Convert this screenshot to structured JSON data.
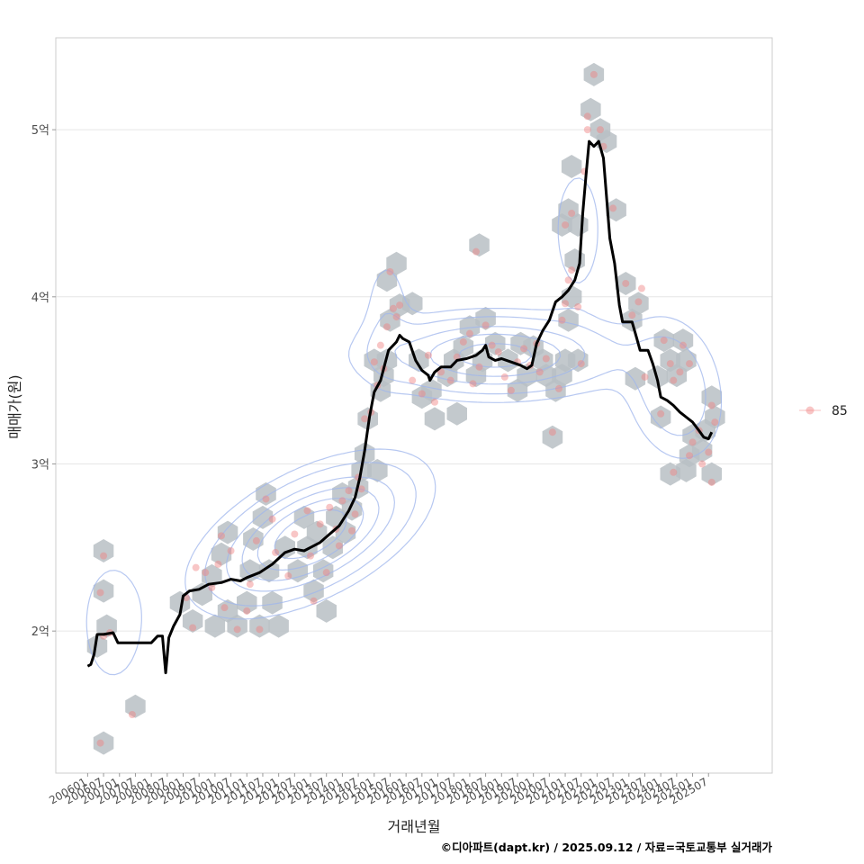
{
  "chart_data": {
    "type": "scatter",
    "xlabel": "거래년월",
    "ylabel": "매매가(원)",
    "caption": "©디아파트(dapt.kr) / 2025.09.12 / 자료=국토교통부 실거래가",
    "x_range": [
      2005.0,
      2027.5
    ],
    "ylim": [
      1.15,
      5.55
    ],
    "y_ticks": [
      {
        "value": 2,
        "label": "2억"
      },
      {
        "value": 3,
        "label": "3억"
      },
      {
        "value": 4,
        "label": "4억"
      },
      {
        "value": 5,
        "label": "5억"
      }
    ],
    "x_ticks": [
      "200601",
      "200607",
      "200701",
      "200707",
      "200801",
      "200807",
      "200901",
      "200907",
      "201001",
      "201007",
      "201101",
      "201107",
      "201201",
      "201207",
      "201301",
      "201307",
      "201401",
      "201407",
      "201501",
      "201507",
      "201601",
      "201607",
      "201701",
      "201707",
      "201801",
      "201807",
      "201901",
      "201907",
      "202001",
      "202007",
      "202101",
      "202107",
      "202201",
      "202207",
      "202301",
      "202307",
      "202401",
      "202407",
      "202501",
      "202507"
    ],
    "legend": {
      "label": "85",
      "position": "right"
    },
    "colors": {
      "points": "#f08080",
      "line": "#000000",
      "hex": "#b8bfc4",
      "contour": "#9fb5ec",
      "grid": "#e6e6e6",
      "border": "#cccccc"
    },
    "trend_line": [
      [
        2006.0,
        1.79
      ],
      [
        2006.1,
        1.8
      ],
      [
        2006.2,
        1.86
      ],
      [
        2006.3,
        1.98
      ],
      [
        2006.5,
        1.98
      ],
      [
        2006.8,
        1.99
      ],
      [
        2006.95,
        1.93
      ],
      [
        2007.5,
        1.93
      ],
      [
        2008.0,
        1.93
      ],
      [
        2008.2,
        1.97
      ],
      [
        2008.35,
        1.97
      ],
      [
        2008.45,
        1.75
      ],
      [
        2008.55,
        1.96
      ],
      [
        2008.7,
        2.03
      ],
      [
        2008.9,
        2.1
      ],
      [
        2009.0,
        2.21
      ],
      [
        2009.2,
        2.24
      ],
      [
        2009.5,
        2.25
      ],
      [
        2009.8,
        2.28
      ],
      [
        2010.2,
        2.29
      ],
      [
        2010.5,
        2.31
      ],
      [
        2010.8,
        2.3
      ],
      [
        2011.0,
        2.32
      ],
      [
        2011.4,
        2.35
      ],
      [
        2011.8,
        2.4
      ],
      [
        2012.2,
        2.47
      ],
      [
        2012.5,
        2.49
      ],
      [
        2012.8,
        2.48
      ],
      [
        2013.0,
        2.5
      ],
      [
        2013.3,
        2.53
      ],
      [
        2013.6,
        2.58
      ],
      [
        2013.9,
        2.63
      ],
      [
        2014.2,
        2.72
      ],
      [
        2014.4,
        2.8
      ],
      [
        2014.55,
        2.92
      ],
      [
        2014.7,
        3.08
      ],
      [
        2014.85,
        3.28
      ],
      [
        2015.0,
        3.43
      ],
      [
        2015.2,
        3.5
      ],
      [
        2015.45,
        3.68
      ],
      [
        2015.7,
        3.73
      ],
      [
        2015.8,
        3.77
      ],
      [
        2015.9,
        3.75
      ],
      [
        2016.1,
        3.73
      ],
      [
        2016.3,
        3.62
      ],
      [
        2016.5,
        3.56
      ],
      [
        2016.7,
        3.53
      ],
      [
        2016.75,
        3.5
      ],
      [
        2016.9,
        3.55
      ],
      [
        2017.1,
        3.58
      ],
      [
        2017.4,
        3.58
      ],
      [
        2017.6,
        3.62
      ],
      [
        2017.9,
        3.63
      ],
      [
        2018.2,
        3.65
      ],
      [
        2018.4,
        3.68
      ],
      [
        2018.5,
        3.71
      ],
      [
        2018.6,
        3.64
      ],
      [
        2018.8,
        3.62
      ],
      [
        2019.0,
        3.63
      ],
      [
        2019.3,
        3.61
      ],
      [
        2019.6,
        3.59
      ],
      [
        2019.8,
        3.57
      ],
      [
        2019.95,
        3.59
      ],
      [
        2020.1,
        3.72
      ],
      [
        2020.3,
        3.8
      ],
      [
        2020.5,
        3.86
      ],
      [
        2020.7,
        3.97
      ],
      [
        2020.9,
        4.0
      ],
      [
        2021.1,
        4.04
      ],
      [
        2021.3,
        4.1
      ],
      [
        2021.45,
        4.2
      ],
      [
        2021.55,
        4.5
      ],
      [
        2021.65,
        4.72
      ],
      [
        2021.75,
        4.93
      ],
      [
        2021.9,
        4.9
      ],
      [
        2022.05,
        4.93
      ],
      [
        2022.2,
        4.83
      ],
      [
        2022.4,
        4.35
      ],
      [
        2022.55,
        4.2
      ],
      [
        2022.7,
        3.95
      ],
      [
        2022.8,
        3.85
      ],
      [
        2023.1,
        3.85
      ],
      [
        2023.25,
        3.75
      ],
      [
        2023.35,
        3.68
      ],
      [
        2023.6,
        3.68
      ],
      [
        2023.75,
        3.6
      ],
      [
        2023.9,
        3.5
      ],
      [
        2024.0,
        3.4
      ],
      [
        2024.2,
        3.38
      ],
      [
        2024.4,
        3.35
      ],
      [
        2024.6,
        3.31
      ],
      [
        2024.8,
        3.28
      ],
      [
        2025.0,
        3.25
      ],
      [
        2025.2,
        3.2
      ],
      [
        2025.35,
        3.16
      ],
      [
        2025.5,
        3.15
      ],
      [
        2025.6,
        3.19
      ]
    ],
    "hexbins": [
      [
        2006.5,
        2.48
      ],
      [
        2006.5,
        2.24
      ],
      [
        2006.3,
        1.91
      ],
      [
        2006.6,
        2.03
      ],
      [
        2006.5,
        1.33
      ],
      [
        2007.5,
        1.55
      ],
      [
        2008.9,
        2.17
      ],
      [
        2009.3,
        2.06
      ],
      [
        2009.6,
        2.22
      ],
      [
        2009.9,
        2.33
      ],
      [
        2010.2,
        2.46
      ],
      [
        2010.4,
        2.59
      ],
      [
        2010.0,
        2.03
      ],
      [
        2010.4,
        2.12
      ],
      [
        2010.7,
        2.03
      ],
      [
        2011.0,
        2.17
      ],
      [
        2011.1,
        2.36
      ],
      [
        2011.2,
        2.55
      ],
      [
        2011.5,
        2.68
      ],
      [
        2011.6,
        2.82
      ],
      [
        2011.7,
        2.36
      ],
      [
        2011.4,
        2.03
      ],
      [
        2011.8,
        2.17
      ],
      [
        2012.0,
        2.03
      ],
      [
        2012.2,
        2.5
      ],
      [
        2012.6,
        2.36
      ],
      [
        2012.8,
        2.68
      ],
      [
        2012.9,
        2.5
      ],
      [
        2013.1,
        2.24
      ],
      [
        2013.2,
        2.59
      ],
      [
        2013.4,
        2.36
      ],
      [
        2013.5,
        2.12
      ],
      [
        2013.7,
        2.5
      ],
      [
        2013.8,
        2.68
      ],
      [
        2014.0,
        2.82
      ],
      [
        2014.1,
        2.59
      ],
      [
        2014.3,
        2.73
      ],
      [
        2014.5,
        2.86
      ],
      [
        2014.6,
        2.96
      ],
      [
        2014.7,
        3.06
      ],
      [
        2014.8,
        3.27
      ],
      [
        2015.1,
        2.96
      ],
      [
        2015.0,
        3.62
      ],
      [
        2015.2,
        3.44
      ],
      [
        2015.3,
        3.53
      ],
      [
        2015.4,
        3.62
      ],
      [
        2015.5,
        3.86
      ],
      [
        2015.4,
        4.1
      ],
      [
        2015.7,
        4.2
      ],
      [
        2015.8,
        3.95
      ],
      [
        2016.2,
        3.96
      ],
      [
        2016.4,
        3.62
      ],
      [
        2016.5,
        3.4
      ],
      [
        2016.8,
        3.44
      ],
      [
        2016.9,
        3.27
      ],
      [
        2017.3,
        3.53
      ],
      [
        2017.5,
        3.62
      ],
      [
        2017.6,
        3.3
      ],
      [
        2017.8,
        3.7
      ],
      [
        2018.0,
        3.82
      ],
      [
        2018.2,
        3.53
      ],
      [
        2018.4,
        3.62
      ],
      [
        2018.5,
        3.87
      ],
      [
        2018.3,
        4.31
      ],
      [
        2018.8,
        3.72
      ],
      [
        2019.2,
        3.62
      ],
      [
        2019.5,
        3.44
      ],
      [
        2019.6,
        3.72
      ],
      [
        2019.8,
        3.53
      ],
      [
        2020.0,
        3.7
      ],
      [
        2020.3,
        3.62
      ],
      [
        2020.4,
        3.53
      ],
      [
        2020.6,
        3.16
      ],
      [
        2020.7,
        3.44
      ],
      [
        2020.9,
        3.53
      ],
      [
        2021.0,
        3.62
      ],
      [
        2021.1,
        3.86
      ],
      [
        2021.2,
        4.0
      ],
      [
        2021.3,
        4.22
      ],
      [
        2021.4,
        3.62
      ],
      [
        2020.9,
        4.43
      ],
      [
        2021.1,
        4.52
      ],
      [
        2021.2,
        4.78
      ],
      [
        2021.4,
        4.43
      ],
      [
        2021.8,
        5.12
      ],
      [
        2021.9,
        5.33
      ],
      [
        2022.1,
        5.0
      ],
      [
        2022.3,
        4.93
      ],
      [
        2022.6,
        4.52
      ],
      [
        2022.9,
        4.08
      ],
      [
        2023.1,
        3.86
      ],
      [
        2023.3,
        3.96
      ],
      [
        2023.2,
        3.51
      ],
      [
        2023.9,
        3.52
      ],
      [
        2024.0,
        3.28
      ],
      [
        2024.1,
        3.74
      ],
      [
        2024.3,
        3.62
      ],
      [
        2024.5,
        3.53
      ],
      [
        2024.7,
        3.74
      ],
      [
        2024.8,
        3.62
      ],
      [
        2024.3,
        2.94
      ],
      [
        2024.8,
        2.96
      ],
      [
        2024.9,
        3.05
      ],
      [
        2025.0,
        3.17
      ],
      [
        2025.3,
        3.08
      ],
      [
        2025.4,
        3.2
      ],
      [
        2025.6,
        2.94
      ],
      [
        2025.7,
        3.28
      ],
      [
        2025.6,
        3.4
      ]
    ],
    "points": [
      [
        2006.5,
        2.45
      ],
      [
        2006.4,
        2.23
      ],
      [
        2006.5,
        1.97
      ],
      [
        2006.7,
        1.99
      ],
      [
        2006.4,
        1.33
      ],
      [
        2007.4,
        1.5
      ],
      [
        2009.1,
        2.2
      ],
      [
        2009.3,
        2.02
      ],
      [
        2009.4,
        2.38
      ],
      [
        2009.7,
        2.35
      ],
      [
        2009.9,
        2.26
      ],
      [
        2010.1,
        2.4
      ],
      [
        2010.2,
        2.57
      ],
      [
        2010.5,
        2.48
      ],
      [
        2010.3,
        2.14
      ],
      [
        2010.7,
        2.01
      ],
      [
        2011.0,
        2.12
      ],
      [
        2011.1,
        2.28
      ],
      [
        2011.3,
        2.54
      ],
      [
        2011.6,
        2.79
      ],
      [
        2011.8,
        2.67
      ],
      [
        2011.4,
        2.01
      ],
      [
        2011.9,
        2.47
      ],
      [
        2012.3,
        2.33
      ],
      [
        2012.5,
        2.58
      ],
      [
        2012.9,
        2.72
      ],
      [
        2013.0,
        2.45
      ],
      [
        2013.1,
        2.18
      ],
      [
        2013.3,
        2.64
      ],
      [
        2013.5,
        2.35
      ],
      [
        2013.6,
        2.74
      ],
      [
        2013.8,
        2.61
      ],
      [
        2013.9,
        2.51
      ],
      [
        2014.0,
        2.78
      ],
      [
        2014.2,
        2.84
      ],
      [
        2014.3,
        2.6
      ],
      [
        2014.4,
        2.7
      ],
      [
        2014.5,
        2.92
      ],
      [
        2014.6,
        2.85
      ],
      [
        2014.7,
        3.27
      ],
      [
        2014.9,
        3.31
      ],
      [
        2015.0,
        3.61
      ],
      [
        2015.1,
        3.47
      ],
      [
        2015.2,
        3.71
      ],
      [
        2015.3,
        3.57
      ],
      [
        2015.4,
        3.82
      ],
      [
        2015.5,
        4.15
      ],
      [
        2015.6,
        3.93
      ],
      [
        2015.8,
        3.95
      ],
      [
        2015.7,
        3.88
      ],
      [
        2016.2,
        3.5
      ],
      [
        2016.5,
        3.42
      ],
      [
        2016.7,
        3.65
      ],
      [
        2016.9,
        3.37
      ],
      [
        2017.1,
        3.55
      ],
      [
        2017.4,
        3.5
      ],
      [
        2017.6,
        3.64
      ],
      [
        2017.8,
        3.73
      ],
      [
        2018.0,
        3.78
      ],
      [
        2018.1,
        3.48
      ],
      [
        2018.3,
        3.58
      ],
      [
        2018.2,
        4.27
      ],
      [
        2018.5,
        3.83
      ],
      [
        2018.7,
        3.71
      ],
      [
        2018.9,
        3.67
      ],
      [
        2019.1,
        3.52
      ],
      [
        2019.3,
        3.44
      ],
      [
        2019.5,
        3.61
      ],
      [
        2019.7,
        3.69
      ],
      [
        2019.9,
        3.59
      ],
      [
        2020.1,
        3.72
      ],
      [
        2020.2,
        3.55
      ],
      [
        2020.4,
        3.63
      ],
      [
        2020.6,
        3.19
      ],
      [
        2020.8,
        3.45
      ],
      [
        2020.9,
        3.86
      ],
      [
        2021.0,
        3.96
      ],
      [
        2021.1,
        4.1
      ],
      [
        2021.2,
        4.16
      ],
      [
        2021.0,
        4.43
      ],
      [
        2021.2,
        4.5
      ],
      [
        2021.4,
        3.94
      ],
      [
        2021.5,
        3.6
      ],
      [
        2021.6,
        4.75
      ],
      [
        2021.7,
        5.0
      ],
      [
        2021.7,
        5.08
      ],
      [
        2021.9,
        5.33
      ],
      [
        2022.1,
        5.0
      ],
      [
        2022.2,
        4.9
      ],
      [
        2022.5,
        4.53
      ],
      [
        2022.9,
        4.08
      ],
      [
        2023.1,
        3.89
      ],
      [
        2023.3,
        3.97
      ],
      [
        2023.4,
        4.05
      ],
      [
        2023.5,
        3.52
      ],
      [
        2024.0,
        3.3
      ],
      [
        2024.1,
        3.74
      ],
      [
        2024.3,
        3.6
      ],
      [
        2024.4,
        3.5
      ],
      [
        2024.6,
        3.55
      ],
      [
        2024.7,
        3.71
      ],
      [
        2024.9,
        3.6
      ],
      [
        2024.4,
        2.95
      ],
      [
        2024.9,
        3.05
      ],
      [
        2025.0,
        3.13
      ],
      [
        2025.2,
        3.2
      ],
      [
        2025.3,
        3.0
      ],
      [
        2025.5,
        3.07
      ],
      [
        2025.6,
        2.89
      ],
      [
        2025.7,
        3.25
      ],
      [
        2025.6,
        3.35
      ]
    ],
    "density_centers": [
      {
        "x": 2013.0,
        "y": 2.58,
        "sx": 1.7,
        "sy": 0.22,
        "w": 1.0,
        "rho": 0.55
      },
      {
        "x": 2018.8,
        "y": 3.65,
        "sx": 2.1,
        "sy": 0.13,
        "w": 0.72,
        "rho": 0.0
      },
      {
        "x": 2024.4,
        "y": 3.45,
        "sx": 0.9,
        "sy": 0.25,
        "w": 0.28,
        "rho": -0.2
      },
      {
        "x": 2021.4,
        "y": 4.4,
        "sx": 0.6,
        "sy": 0.3,
        "w": 0.12,
        "rho": 0.0
      },
      {
        "x": 2006.8,
        "y": 2.05,
        "sx": 0.8,
        "sy": 0.3,
        "w": 0.12,
        "rho": 0.0
      },
      {
        "x": 2015.4,
        "y": 3.9,
        "sx": 0.5,
        "sy": 0.25,
        "w": 0.12,
        "rho": 0.0
      }
    ],
    "contour_levels": [
      0.07,
      0.15,
      0.3,
      0.45,
      0.62,
      0.8
    ]
  }
}
